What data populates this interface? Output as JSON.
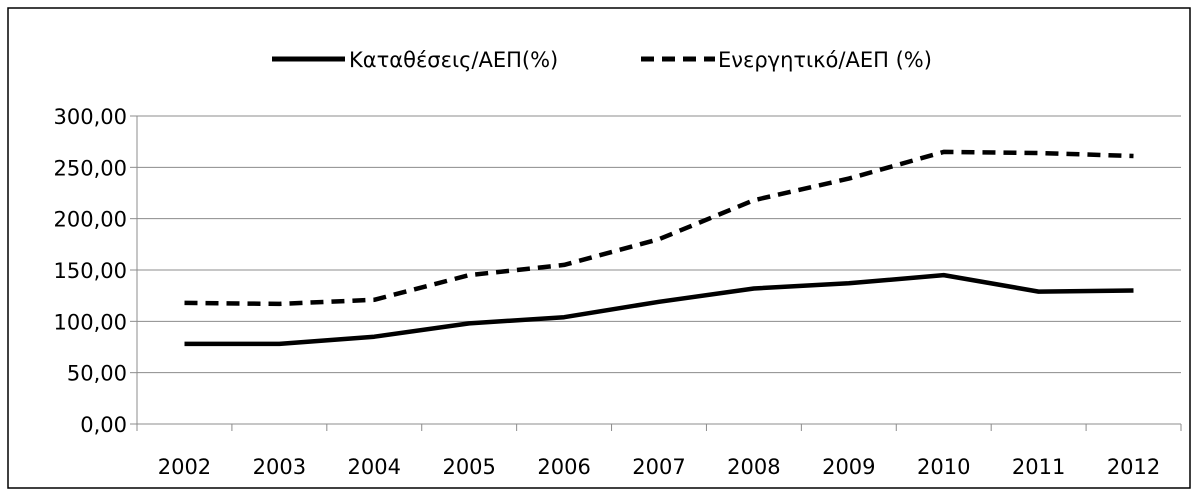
{
  "chart_data": {
    "type": "line",
    "title": "",
    "xlabel": "",
    "ylabel": "",
    "categories": [
      "2002",
      "2003",
      "2004",
      "2005",
      "2006",
      "2007",
      "2008",
      "2009",
      "2010",
      "2011",
      "2012"
    ],
    "ylim": [
      0,
      300
    ],
    "yticks": [
      "0,00",
      "50,00",
      "100,00",
      "150,00",
      "200,00",
      "250,00",
      "300,00"
    ],
    "grid": true,
    "legend_position": "top",
    "series": [
      {
        "name": "Καταθέσεις/ΑΕΠ(%)",
        "style": "solid",
        "color": "#000000",
        "values": [
          78,
          78,
          85,
          98,
          104,
          119,
          132,
          137,
          145,
          129,
          130
        ]
      },
      {
        "name": "Ενεργητικό/ΑΕΠ (%)",
        "style": "dashed",
        "color": "#000000",
        "values": [
          118,
          117,
          121,
          145,
          155,
          180,
          218,
          239,
          265,
          264,
          261
        ]
      }
    ]
  }
}
